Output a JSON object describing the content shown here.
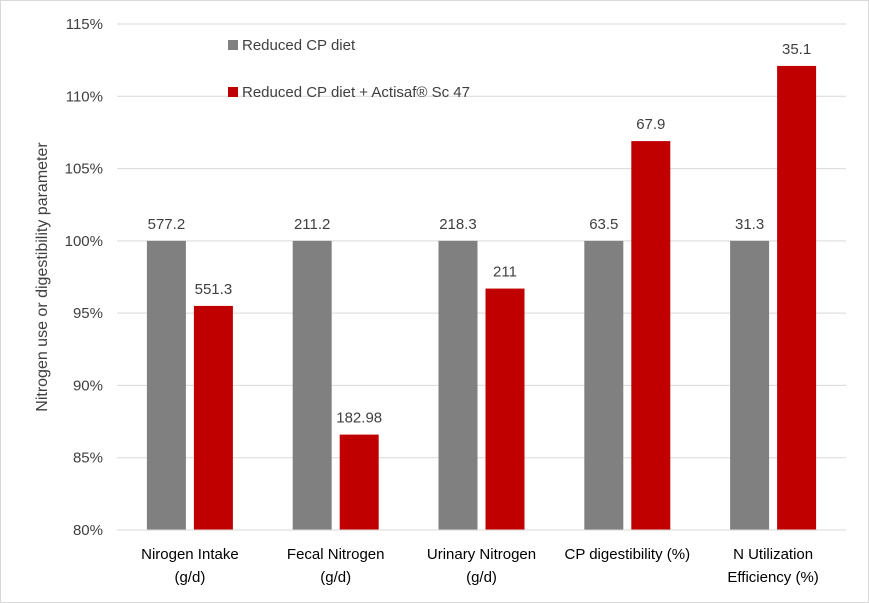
{
  "chart_data": {
    "type": "bar",
    "categories": [
      [
        "Nirogen Intake",
        "(g/d)"
      ],
      [
        "Fecal Nitrogen",
        "(g/d)"
      ],
      [
        "Urinary Nitrogen",
        "(g/d)"
      ],
      [
        "CP digestibility (%)"
      ],
      [
        "N Utilization",
        "Efficiency (%)"
      ]
    ],
    "series": [
      {
        "name": "Reduced CP diet",
        "color": "#808080",
        "values": [
          100,
          100,
          100,
          100,
          100
        ],
        "labels": [
          "577.2",
          "211.2",
          "218.3",
          "63.5",
          "31.3"
        ]
      },
      {
        "name": "Reduced CP diet + Actisaf® Sc 47",
        "color": "#c00000",
        "values": [
          95.5,
          86.6,
          96.7,
          106.9,
          112.1
        ],
        "labels": [
          "551.3",
          "182.98",
          "211",
          "67.9",
          "35.1"
        ]
      }
    ],
    "title": "",
    "xlabel": "",
    "ylabel": "Nitrogen use or digestibility parameter",
    "ylim": [
      80,
      115
    ],
    "yticks": [
      80,
      85,
      90,
      95,
      100,
      105,
      110,
      115
    ],
    "ytick_format": "percent",
    "grid": true,
    "legend": "top-left"
  }
}
